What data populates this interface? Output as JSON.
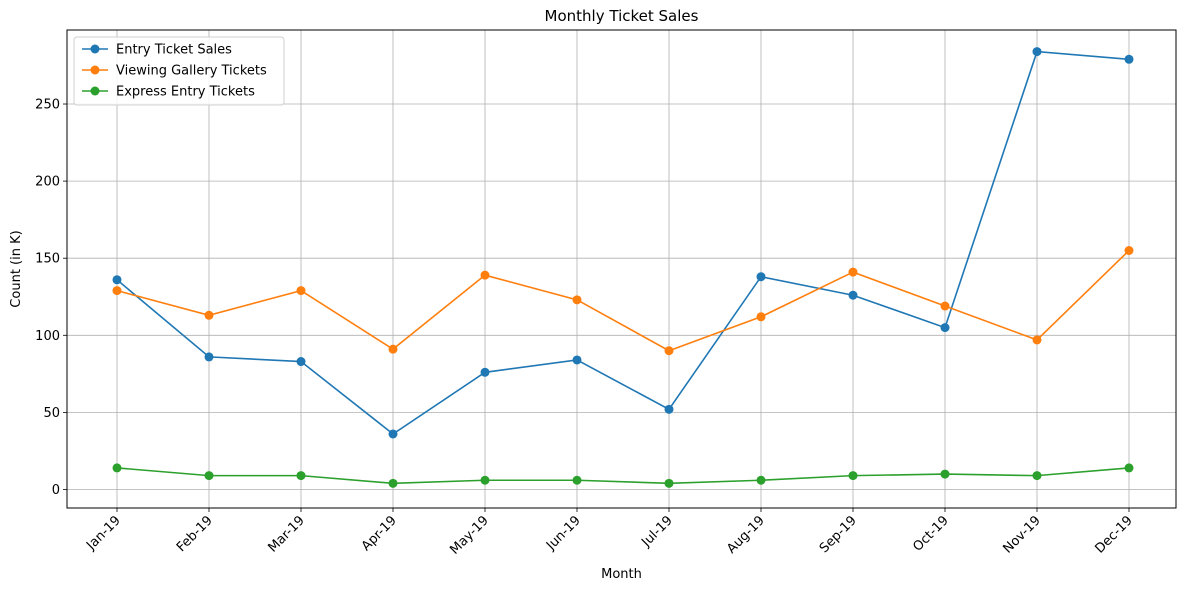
{
  "chart_data": {
    "type": "line",
    "title": "Monthly Ticket Sales",
    "xlabel": "Month",
    "ylabel": "Count (in K)",
    "categories": [
      "Jan-19",
      "Feb-19",
      "Mar-19",
      "Apr-19",
      "May-19",
      "Jun-19",
      "Jul-19",
      "Aug-19",
      "Sep-19",
      "Oct-19",
      "Nov-19",
      "Dec-19"
    ],
    "yticks": [
      0,
      50,
      100,
      150,
      200,
      250
    ],
    "ylim": [
      -12,
      298
    ],
    "grid": true,
    "legend": "top-left",
    "series": [
      {
        "name": "Entry Ticket Sales",
        "color": "#1f77b4",
        "values": [
          136,
          86,
          83,
          36,
          76,
          84,
          52,
          138,
          126,
          105,
          284,
          279
        ]
      },
      {
        "name": "Viewing Gallery Tickets",
        "color": "#ff7f0e",
        "values": [
          129,
          113,
          129,
          91,
          139,
          123,
          90,
          112,
          141,
          119,
          97,
          155
        ]
      },
      {
        "name": "Express Entry Tickets",
        "color": "#2ca02c",
        "values": [
          14,
          9,
          9,
          4,
          6,
          6,
          4,
          6,
          9,
          10,
          9,
          14
        ]
      }
    ]
  }
}
